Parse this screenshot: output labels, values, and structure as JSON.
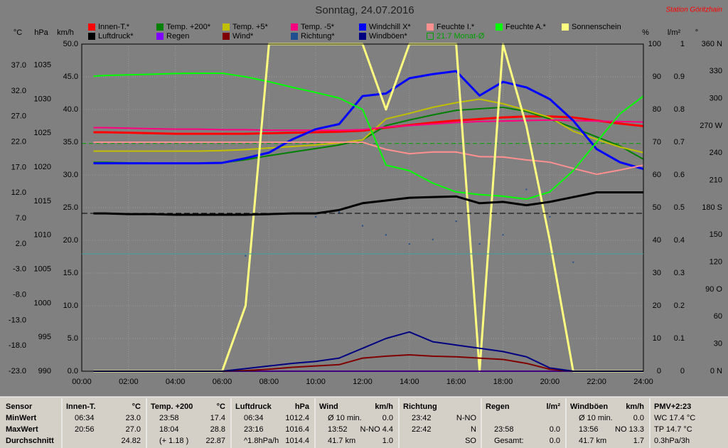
{
  "chart_data": {
    "type": "line",
    "title": "Sonntag, 24.07.2016",
    "station": "Station Göritzhain",
    "xlim": [
      0,
      24
    ],
    "xticks": [
      {
        "value": 0,
        "label": "00:00"
      },
      {
        "value": 2,
        "label": "02:00"
      },
      {
        "value": 4,
        "label": "04:00"
      },
      {
        "value": 6,
        "label": "06:00"
      },
      {
        "value": 8,
        "label": "08:00"
      },
      {
        "value": 10,
        "label": "10:00"
      },
      {
        "value": 12,
        "label": "12:00"
      },
      {
        "value": 14,
        "label": "14:00"
      },
      {
        "value": 16,
        "label": "16:00"
      },
      {
        "value": 18,
        "label": "18:00"
      },
      {
        "value": 20,
        "label": "20:00"
      },
      {
        "value": 22,
        "label": "22:00"
      },
      {
        "value": 24,
        "label": "24:00"
      }
    ],
    "grid": true,
    "axes": {
      "temp": {
        "label": "°C",
        "lim": [
          -23,
          41.2
        ],
        "ticks": [
          {
            "value": -23,
            "label": "-23.0"
          },
          {
            "value": -18,
            "label": "-18.0"
          },
          {
            "value": -13,
            "label": "-13.0"
          },
          {
            "value": -8,
            "label": "-8.0"
          },
          {
            "value": -3,
            "label": "-3.0"
          },
          {
            "value": 2,
            "label": "2.0"
          },
          {
            "value": 7,
            "label": "7.0"
          },
          {
            "value": 12,
            "label": "12.0"
          },
          {
            "value": 17,
            "label": "17.0"
          },
          {
            "value": 22,
            "label": "22.0"
          },
          {
            "value": 27,
            "label": "27.0"
          },
          {
            "value": 32,
            "label": "32.0"
          },
          {
            "value": 37,
            "label": "37.0"
          }
        ]
      },
      "pressure": {
        "label": "hPa",
        "lim": [
          990,
          1038.1
        ],
        "ticks": [
          990,
          995,
          1000,
          1005,
          1010,
          1015,
          1020,
          1025,
          1030,
          1035
        ]
      },
      "wind": {
        "label": "km/h",
        "lim": [
          0,
          50
        ],
        "ticks": [
          {
            "value": 0,
            "label": "0.0"
          },
          {
            "value": 5,
            "label": "5.0"
          },
          {
            "value": 10,
            "label": "10.0"
          },
          {
            "value": 15,
            "label": "15.0"
          },
          {
            "value": 20,
            "label": "20.0"
          },
          {
            "value": 25,
            "label": "25.0"
          },
          {
            "value": 30,
            "label": "30.0"
          },
          {
            "value": 35,
            "label": "35.0"
          },
          {
            "value": 40,
            "label": "40.0"
          },
          {
            "value": 45,
            "label": "45.0"
          },
          {
            "value": 50,
            "label": "50.0"
          }
        ]
      },
      "humidity": {
        "label": "%",
        "lim": [
          0,
          100
        ],
        "ticks": [
          0,
          10,
          20,
          30,
          40,
          50,
          60,
          70,
          80,
          90,
          100
        ]
      },
      "rain": {
        "label": "l/m²",
        "lim": [
          0,
          1
        ],
        "ticks": [
          0,
          0.1,
          0.2,
          0.3,
          0.4,
          0.5,
          0.6,
          0.7,
          0.8,
          0.9,
          1
        ]
      },
      "direction": {
        "label": "°",
        "lim": [
          0,
          360
        ],
        "ticks": [
          {
            "value": 0,
            "label": "0  N"
          },
          30,
          60,
          {
            "value": 90,
            "label": "90  O"
          },
          120,
          150,
          {
            "value": 180,
            "label": "180 S"
          },
          210,
          240,
          {
            "value": 270,
            "label": "270 W"
          },
          300,
          330,
          {
            "value": 360,
            "label": "360 N"
          }
        ]
      }
    },
    "x": [
      0.5,
      1,
      2,
      3,
      4,
      5,
      6,
      7,
      8,
      9,
      10,
      11,
      12,
      13,
      14,
      15,
      16,
      17,
      18,
      19,
      20,
      21,
      22,
      23,
      24
    ],
    "series": [
      {
        "name": "Innen-T.*",
        "color": "#ff0000",
        "axis": "temp",
        "width": 3,
        "values": [
          23.9,
          23.9,
          23.8,
          23.7,
          23.6,
          23.6,
          23.6,
          23.6,
          23.7,
          23.8,
          23.9,
          24.0,
          24.2,
          24.8,
          25.3,
          25.8,
          26.2,
          26.5,
          26.8,
          27.0,
          27.0,
          26.8,
          26.2,
          25.6,
          25.1
        ]
      },
      {
        "name": "Temp. +200*",
        "color": "#008000",
        "axis": "temp",
        "width": 2,
        "values": [
          18.0,
          18.0,
          17.9,
          17.8,
          17.8,
          17.8,
          17.9,
          18.5,
          19.3,
          20.0,
          20.7,
          21.4,
          22.4,
          25.2,
          26.3,
          27.3,
          28.2,
          28.5,
          28.8,
          28.0,
          26.5,
          24.8,
          23.0,
          21.2,
          18.6
        ]
      },
      {
        "name": "Temp. +5*",
        "color": "#c0c000",
        "axis": "temp",
        "width": 2,
        "values": [
          20.2,
          20.2,
          20.2,
          20.2,
          20.2,
          20.2,
          20.3,
          20.5,
          20.8,
          21.1,
          21.4,
          21.8,
          22.4,
          26.5,
          27.6,
          28.8,
          29.7,
          30.4,
          29.5,
          28.2,
          26.8,
          24.1,
          22.5,
          21.0,
          19.9
        ]
      },
      {
        "name": "Temp. -5*",
        "color": "#ff0080",
        "axis": "temp",
        "width": 2,
        "values": [
          24.8,
          24.8,
          24.7,
          24.6,
          24.5,
          24.5,
          24.4,
          24.4,
          24.3,
          24.3,
          24.3,
          24.3,
          24.4,
          24.9,
          25.2,
          25.5,
          25.8,
          26.0,
          26.1,
          26.2,
          26.3,
          26.2,
          26.1,
          26.0,
          25.9
        ]
      },
      {
        "name": "Windchill X*",
        "color": "#0000ff",
        "axis": "temp",
        "width": 3,
        "values": [
          17.8,
          17.8,
          17.8,
          17.8,
          17.8,
          17.8,
          17.9,
          18.8,
          19.9,
          22.5,
          24.5,
          25.5,
          31.0,
          31.5,
          34.5,
          35.3,
          35.9,
          31.1,
          33.8,
          32.7,
          30.4,
          26.2,
          20.6,
          18.0,
          16.7
        ]
      },
      {
        "name": "Feuchte I.*",
        "color": "#ff9090",
        "axis": "humidity",
        "width": 2,
        "values": [
          70,
          70,
          70,
          70,
          70,
          70,
          70,
          70,
          70,
          70,
          70,
          70,
          70,
          67.8,
          66.5,
          67,
          67,
          65.6,
          65.5,
          64.6,
          63.9,
          62,
          60.2,
          61.5,
          63
        ]
      },
      {
        "name": "Feuchte A.*",
        "color": "#00ff00",
        "axis": "humidity",
        "width": 2,
        "values": [
          90.2,
          90.4,
          90.6,
          90.8,
          91,
          91.1,
          91.1,
          90,
          88.5,
          86.8,
          85.2,
          83.5,
          80,
          63,
          61.3,
          57.5,
          54.8,
          54,
          53.5,
          52.6,
          54.8,
          61.3,
          70,
          78.7,
          84.1
        ]
      },
      {
        "name": "Sonnenschein",
        "color": "#ffff80",
        "axis": "humidity",
        "width": 3,
        "values": [
          0,
          0,
          0,
          0,
          0,
          0,
          0,
          20,
          100,
          100,
          100,
          100,
          100,
          80,
          100,
          100,
          100,
          0,
          100,
          75,
          40,
          0,
          0,
          0,
          0
        ]
      },
      {
        "name": "Luftdruck*",
        "color": "#000000",
        "axis": "pressure",
        "width": 3,
        "values": [
          1013.2,
          1013.2,
          1013.1,
          1013.1,
          1013.0,
          1013.0,
          1013.0,
          1013.0,
          1013.1,
          1013.2,
          1013.2,
          1013.7,
          1014.7,
          1015.1,
          1015.5,
          1015.6,
          1015.7,
          1014.7,
          1014.9,
          1014.4,
          1014.9,
          1015.6,
          1016.3,
          1016.3,
          1016.3
        ]
      },
      {
        "name": "Regen",
        "color": "#8000ff",
        "axis": "rain",
        "width": 2,
        "values": [
          0,
          0,
          0,
          0,
          0,
          0,
          0,
          0,
          0,
          0,
          0,
          0,
          0,
          0,
          0,
          0,
          0,
          0,
          0,
          0,
          0,
          0,
          0,
          0,
          0
        ]
      },
      {
        "name": "Wind*",
        "color": "#800000",
        "axis": "wind",
        "width": 2,
        "values": [
          0,
          0,
          0,
          0,
          0,
          0,
          0,
          0.1,
          0.3,
          0.6,
          0.8,
          1.0,
          2.0,
          2.3,
          2.5,
          2.3,
          2.2,
          2.0,
          1.8,
          1.2,
          0.3,
          0,
          0,
          0,
          0
        ]
      },
      {
        "name": "Richtung*",
        "color": "#1f4f8f",
        "axis": "direction",
        "style": "dots",
        "values": [
          null,
          null,
          null,
          null,
          null,
          null,
          null,
          127,
          null,
          null,
          170,
          175,
          160,
          150,
          140,
          145,
          165,
          140,
          150,
          200,
          170,
          120,
          null,
          null,
          null
        ]
      },
      {
        "name": "Windböen*",
        "color": "#000080",
        "axis": "wind",
        "width": 2,
        "values": [
          0,
          0,
          0,
          0,
          0,
          0,
          0,
          0.4,
          0.8,
          1.2,
          1.5,
          2.0,
          3.5,
          5.0,
          6.0,
          4.5,
          4.0,
          3.5,
          3.0,
          2.2,
          0.5,
          0,
          0,
          0,
          0
        ]
      }
    ],
    "reference": {
      "name": "21.7 Monat-Ø",
      "value": 21.7,
      "axis": "temp",
      "color": "#00a000"
    }
  },
  "table": {
    "sensor": {
      "header": "Sensor",
      "rows": [
        "MinWert",
        "MaxWert",
        "Durchschnitt"
      ]
    },
    "groups": [
      {
        "header": {
          "left": "Innen-T.",
          "right": "°C"
        },
        "rows": [
          {
            "left": "06:34",
            "right": "23.0"
          },
          {
            "left": "20:56",
            "right": "27.0"
          },
          {
            "right": "24.82"
          }
        ]
      },
      {
        "header": {
          "left": "Temp. +200",
          "right": "°C"
        },
        "rows": [
          {
            "left": "23:58",
            "right": "17.4"
          },
          {
            "left": "18:04",
            "right": "28.8"
          },
          {
            "left": "(+ 1.18 )",
            "right": "22.87"
          }
        ]
      },
      {
        "header": {
          "left": "Luftdruck",
          "right": "hPa"
        },
        "rows": [
          {
            "left": "06:34",
            "right": "1012.4"
          },
          {
            "left": "23:16",
            "right": "1016.4"
          },
          {
            "left": "^1.8hPa/h",
            "right": "1014.4"
          }
        ]
      },
      {
        "header": {
          "left": "Wind",
          "right": "km/h"
        },
        "rows": [
          {
            "left": "Ø 10 min.",
            "right": "0.0"
          },
          {
            "left": "13:52",
            "right": "N-NO 4.4"
          },
          {
            "left": "41.7 km",
            "right": "1.0"
          }
        ]
      },
      {
        "header": {
          "left": "Richtung"
        },
        "rows": [
          {
            "left": "23:42",
            "right": "N-NO"
          },
          {
            "left": "22:42",
            "right": "N"
          },
          {
            "right": "SO"
          }
        ]
      },
      {
        "header": {
          "left": "Regen",
          "right": "l/m²"
        },
        "rows": [
          null,
          {
            "left": "23:58",
            "right": "0.0"
          },
          {
            "left": "Gesamt:",
            "right": "0.0"
          }
        ]
      },
      {
        "header": {
          "left": "Windböen",
          "right": "km/h"
        },
        "rows": [
          {
            "left": "Ø 10 min.",
            "right": "0.0"
          },
          {
            "left": "13:56",
            "right": "NO 13.3"
          },
          {
            "left": "41.7 km",
            "right": "1.7"
          }
        ]
      },
      {
        "header": {
          "left": "PMV+2:23"
        },
        "rows": [
          {
            "left": "WC 17.4 °C"
          },
          {
            "left": "TP 14.7 °C"
          },
          {
            "left": "0.3hPa/3h"
          }
        ]
      }
    ]
  }
}
